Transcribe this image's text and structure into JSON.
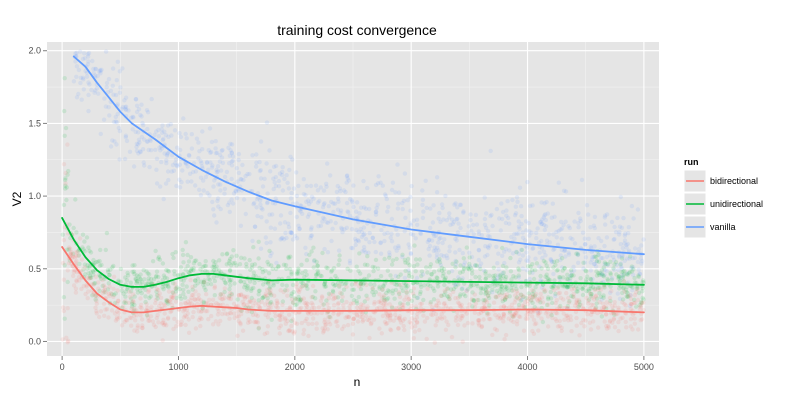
{
  "chart_data": {
    "type": "scatter",
    "title": "training cost convergence",
    "xlabel": "n",
    "ylabel": "V2",
    "xlim": [
      -130,
      5130
    ],
    "ylim": [
      -0.1,
      2.06
    ],
    "x_ticks": [
      0,
      1000,
      2000,
      3000,
      4000,
      5000
    ],
    "y_ticks": [
      0.0,
      0.5,
      1.0,
      1.5,
      2.0
    ],
    "x_tick_labels": [
      "0",
      "1000",
      "2000",
      "3000",
      "4000",
      "5000"
    ],
    "y_tick_labels": [
      "0.0",
      "0.5",
      "1.0",
      "1.5",
      "2.0"
    ],
    "grid": true,
    "legend": {
      "title": "run",
      "position": "right",
      "entries": [
        "bidirectional",
        "unidirectional",
        "vanilla"
      ]
    },
    "colors": {
      "panel": "#e5e5e5",
      "grid_major": "#ffffff",
      "grid_minor": "#f2f2f2",
      "bidirectional": "#f8766d",
      "unidirectional": "#00ba38",
      "vanilla": "#619cff"
    },
    "series": [
      {
        "name": "bidirectional",
        "trend": [
          [
            0,
            0.65
          ],
          [
            100,
            0.53
          ],
          [
            200,
            0.42
          ],
          [
            300,
            0.33
          ],
          [
            400,
            0.27
          ],
          [
            500,
            0.22
          ],
          [
            600,
            0.2
          ],
          [
            700,
            0.2
          ],
          [
            800,
            0.21
          ],
          [
            900,
            0.22
          ],
          [
            1000,
            0.23
          ],
          [
            1100,
            0.24
          ],
          [
            1200,
            0.245
          ],
          [
            1300,
            0.24
          ],
          [
            1400,
            0.235
          ],
          [
            1500,
            0.23
          ],
          [
            1600,
            0.22
          ],
          [
            1800,
            0.21
          ],
          [
            2000,
            0.21
          ],
          [
            2500,
            0.21
          ],
          [
            3000,
            0.215
          ],
          [
            3500,
            0.215
          ],
          [
            4000,
            0.22
          ],
          [
            4500,
            0.215
          ],
          [
            5000,
            0.2
          ]
        ],
        "scatter_spread": 0.08
      },
      {
        "name": "unidirectional",
        "trend": [
          [
            0,
            0.85
          ],
          [
            100,
            0.7
          ],
          [
            200,
            0.58
          ],
          [
            300,
            0.49
          ],
          [
            400,
            0.43
          ],
          [
            500,
            0.39
          ],
          [
            600,
            0.375
          ],
          [
            700,
            0.375
          ],
          [
            800,
            0.39
          ],
          [
            900,
            0.41
          ],
          [
            1000,
            0.435
          ],
          [
            1100,
            0.455
          ],
          [
            1200,
            0.465
          ],
          [
            1300,
            0.465
          ],
          [
            1400,
            0.455
          ],
          [
            1500,
            0.445
          ],
          [
            1600,
            0.435
          ],
          [
            1800,
            0.42
          ],
          [
            2000,
            0.425
          ],
          [
            2500,
            0.42
          ],
          [
            3000,
            0.415
          ],
          [
            3500,
            0.41
          ],
          [
            4000,
            0.405
          ],
          [
            4500,
            0.4
          ],
          [
            5000,
            0.39
          ]
        ],
        "scatter_spread": 0.09
      },
      {
        "name": "vanilla",
        "trend": [
          [
            100,
            1.96
          ],
          [
            200,
            1.89
          ],
          [
            300,
            1.78
          ],
          [
            400,
            1.68
          ],
          [
            500,
            1.58
          ],
          [
            600,
            1.5
          ],
          [
            800,
            1.39
          ],
          [
            1000,
            1.27
          ],
          [
            1200,
            1.18
          ],
          [
            1400,
            1.1
          ],
          [
            1600,
            1.03
          ],
          [
            1800,
            0.97
          ],
          [
            2000,
            0.93
          ],
          [
            2500,
            0.84
          ],
          [
            3000,
            0.77
          ],
          [
            3500,
            0.72
          ],
          [
            4000,
            0.67
          ],
          [
            4500,
            0.63
          ],
          [
            5000,
            0.6
          ]
        ],
        "scatter_spread": 0.16
      }
    ]
  }
}
